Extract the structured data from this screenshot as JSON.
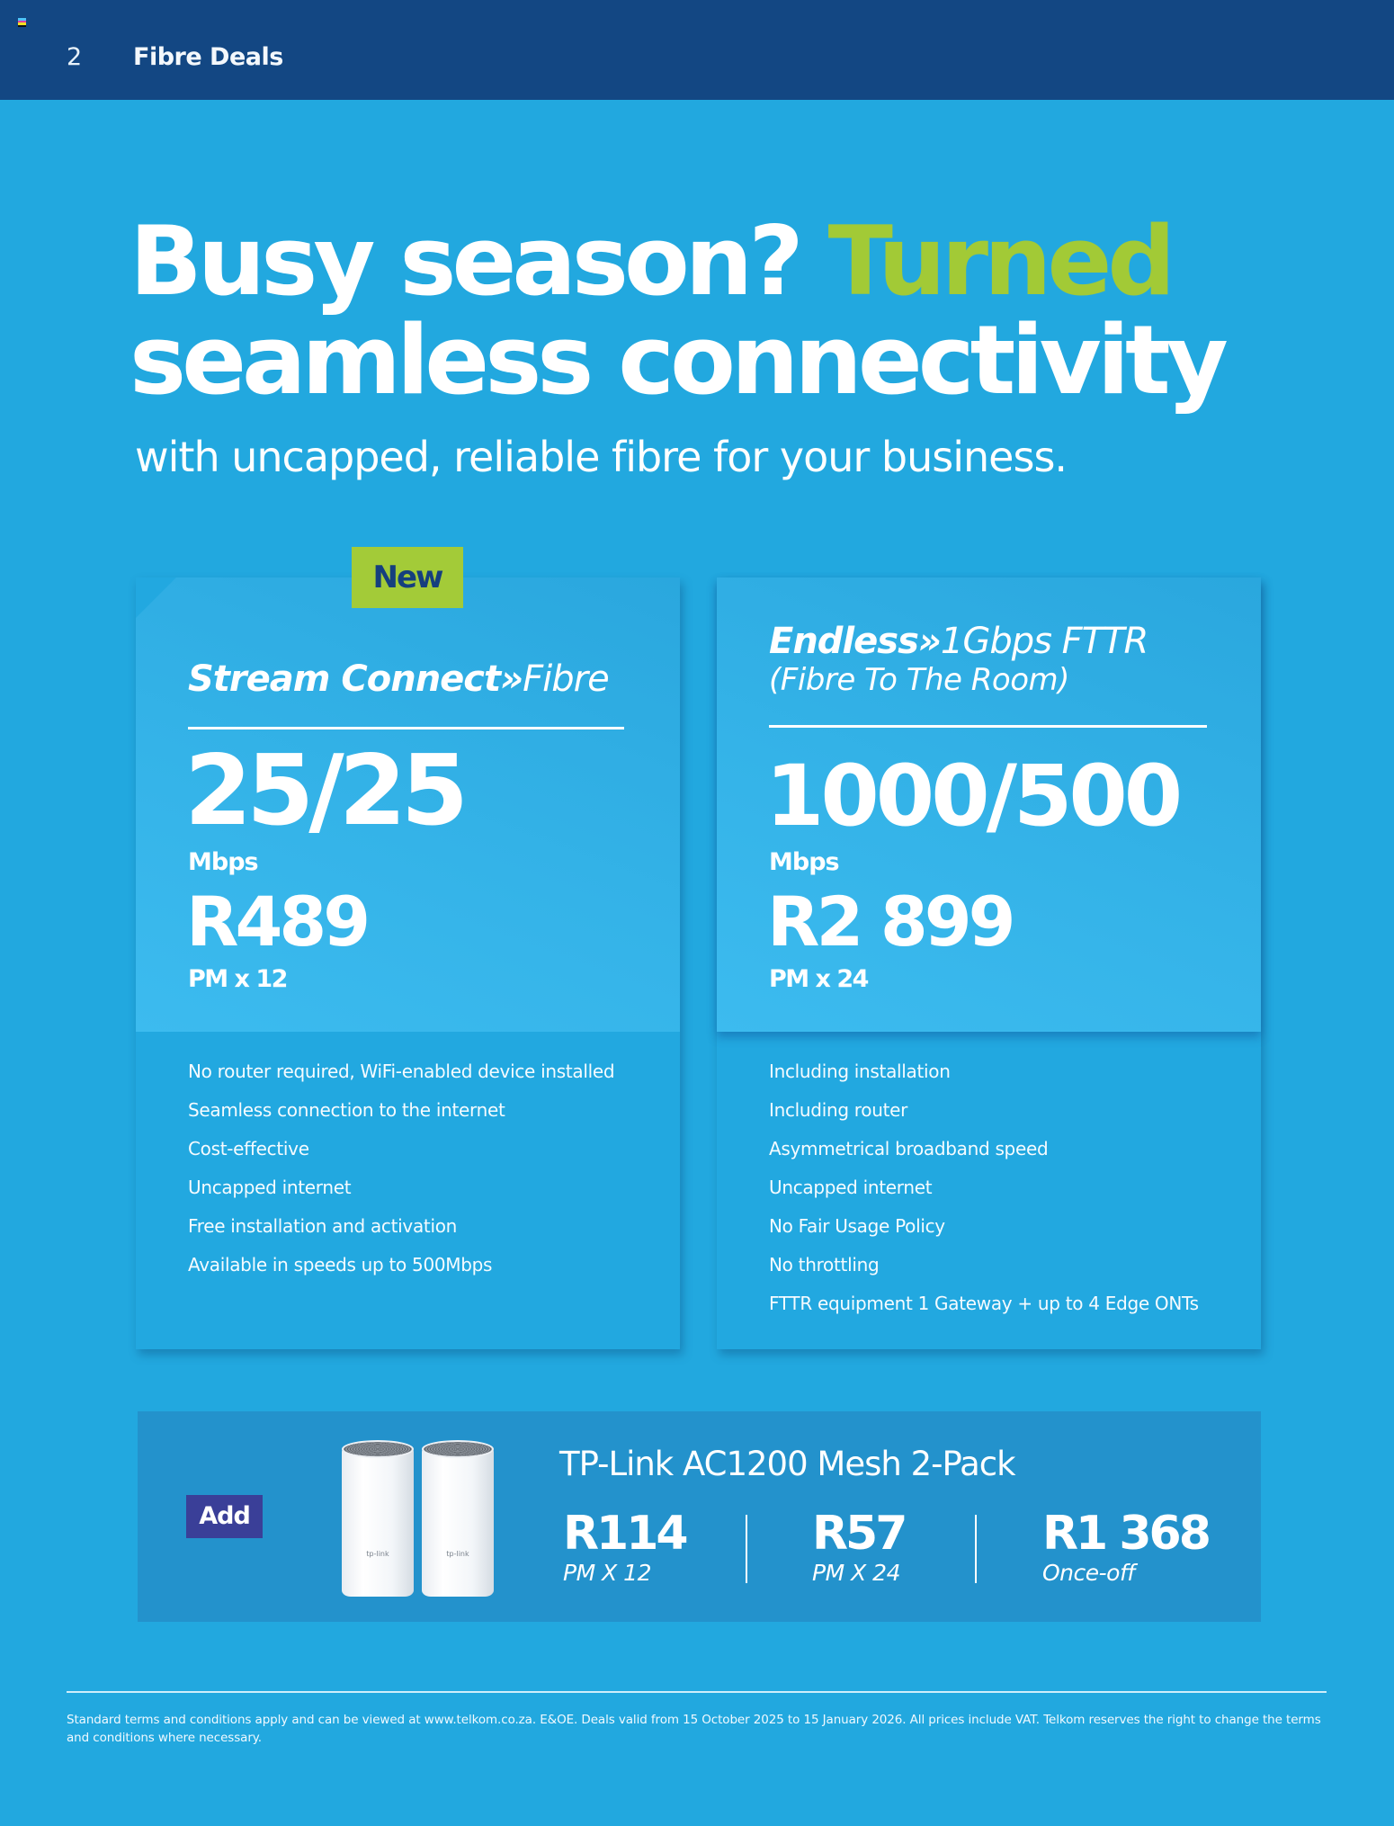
{
  "header": {
    "page_number": "2",
    "section_title": "Fibre Deals",
    "reg_mark_colors": [
      "#4fc3f7",
      "#e040a0",
      "#f5e020",
      "#111111"
    ]
  },
  "hero": {
    "headline_part1": "Busy season? ",
    "headline_accent": "Turned",
    "headline_line2": "seamless connectivity",
    "subheadline": "with uncapped, reliable fibre for your business.",
    "accent_color": "#a2ca36"
  },
  "deals": [
    {
      "badge": "New",
      "title_bold": "Stream Connect»",
      "title_light": "Fibre",
      "subtitle": "",
      "speed": "25/25",
      "speed_unit": "Mbps",
      "price": "R489",
      "term": "PM x 12",
      "features": [
        "No router required, WiFi-enabled device installed",
        "Seamless connection to the internet",
        "Cost-effective",
        "Uncapped internet",
        "Free installation and activation",
        "Available in speeds up to 500Mbps"
      ]
    },
    {
      "title_bold": "Endless»",
      "title_light": "1Gbps FTTR",
      "subtitle": "(Fibre To The Room)",
      "speed": "1000/500",
      "speed_unit": "Mbps",
      "price": "R2 899",
      "term": "PM x 24",
      "features": [
        "Including installation",
        "Including router",
        "Asymmetrical broadband speed",
        "Uncapped internet",
        "No Fair Usage Policy",
        "No throttling",
        "FTTR equipment 1 Gateway + up to 4 Edge ONTs"
      ]
    }
  ],
  "addon": {
    "add_label": "Add",
    "product_name": "TP-Link AC1200 Mesh 2-Pack",
    "device_logo": "tp-link",
    "prices": [
      {
        "price": "R114",
        "term": "PM X 12"
      },
      {
        "price": "R57",
        "term": "PM X 24"
      },
      {
        "price": "R1 368",
        "term": "Once-off"
      }
    ]
  },
  "footer": {
    "terms": "Standard terms and conditions apply and can be viewed at www.telkom.co.za. E&OE. Deals valid from 15 October 2025 to 15 January 2026. All prices include VAT. Telkom reserves the right to change the terms and conditions where necessary."
  },
  "colors": {
    "header_bg": "#134783",
    "page_bg": "#22a8df",
    "badge_green": "#a3cb38",
    "badge_text": "#153f7e",
    "add_button": "#3a3f98",
    "banner_bg": "#2392cc"
  }
}
